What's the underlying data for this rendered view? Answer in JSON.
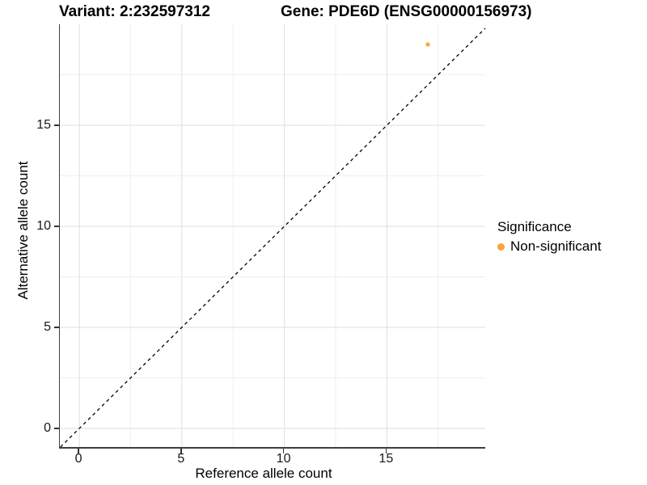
{
  "titles": {
    "variant": "Variant: 2:232597312",
    "gene": "Gene: PDE6D (ENSG00000156973)"
  },
  "axes": {
    "x_label": "Reference allele count",
    "y_label": "Alternative allele count",
    "x_tick_labels": [
      "0",
      "5",
      "10",
      "15"
    ],
    "y_tick_labels": [
      "0",
      "5",
      "10",
      "15"
    ]
  },
  "legend": {
    "title": "Significance",
    "items": [
      {
        "label": "Non-significant",
        "color": "#FAA43A"
      }
    ]
  },
  "colors": {
    "point_orange": "#FAA43A",
    "grid_major": "#E3E3E3",
    "grid_minor": "#EFEFEF",
    "axis_line": "#3F3F3F",
    "tick_mark": "#333333",
    "reference_line": "#000000",
    "background": "#FFFFFF"
  },
  "chart_data": {
    "type": "scatter",
    "title": "Variant: 2:232597312   Gene: PDE6D (ENSG00000156973)",
    "xlabel": "Reference allele count",
    "ylabel": "Alternative allele count",
    "xlim": [
      -0.95,
      19.8
    ],
    "ylim": [
      -0.92,
      20
    ],
    "x_major_ticks": [
      0,
      5,
      10,
      15
    ],
    "y_major_ticks": [
      0,
      5,
      10,
      15
    ],
    "x_minor_ticks": [
      2.5,
      7.5,
      12.5,
      17.5
    ],
    "y_minor_ticks": [
      2.5,
      7.5,
      12.5,
      17.5
    ],
    "grid": "major+minor",
    "legend_position": "right",
    "reference_line": {
      "type": "identity y=x",
      "style": "dashed",
      "color": "#000000"
    },
    "series": [
      {
        "name": "Non-significant",
        "color": "#FAA43A",
        "point_radius": 2.6,
        "points": [
          {
            "x": 17,
            "y": 19
          }
        ]
      }
    ]
  }
}
